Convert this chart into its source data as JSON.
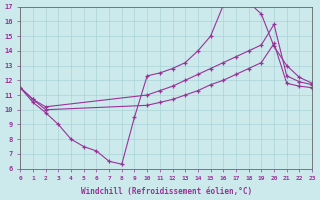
{
  "xlabel": "Windchill (Refroidissement éolien,°C)",
  "xlim": [
    0,
    23
  ],
  "ylim": [
    6,
    17
  ],
  "xticks": [
    0,
    1,
    2,
    3,
    4,
    5,
    6,
    7,
    8,
    9,
    10,
    11,
    12,
    13,
    14,
    15,
    16,
    17,
    18,
    19,
    20,
    21,
    22,
    23
  ],
  "yticks": [
    6,
    7,
    8,
    9,
    10,
    11,
    12,
    13,
    14,
    15,
    16,
    17
  ],
  "background_color": "#cce9ec",
  "grid_color": "#aad4d8",
  "line_color": "#993399",
  "curve1_x": [
    0,
    1,
    2,
    3,
    4,
    5,
    6,
    7,
    8,
    9,
    10,
    11,
    12,
    13,
    14,
    15,
    16,
    17,
    18,
    19,
    20,
    21,
    22,
    23
  ],
  "curve1_y": [
    11.5,
    10.5,
    9.8,
    9.0,
    8.0,
    7.5,
    7.2,
    6.5,
    6.3,
    9.5,
    12.3,
    12.5,
    12.8,
    13.2,
    14.0,
    15.0,
    17.1,
    17.2,
    17.3,
    16.5,
    14.3,
    13.0,
    12.2,
    11.8
  ],
  "curve2_x": [
    0,
    1,
    2,
    10,
    11,
    12,
    13,
    14,
    15,
    16,
    17,
    18,
    19,
    20,
    21,
    22,
    23
  ],
  "curve2_y": [
    11.5,
    10.7,
    10.2,
    11.0,
    11.3,
    11.6,
    12.0,
    12.4,
    12.8,
    13.2,
    13.6,
    14.0,
    14.4,
    15.8,
    12.3,
    11.9,
    11.7
  ],
  "curve3_x": [
    0,
    1,
    2,
    10,
    11,
    12,
    13,
    14,
    15,
    16,
    17,
    18,
    19,
    20,
    21,
    22,
    23
  ],
  "curve3_y": [
    11.5,
    10.7,
    10.0,
    10.3,
    10.5,
    10.7,
    11.0,
    11.3,
    11.7,
    12.0,
    12.4,
    12.8,
    13.2,
    14.5,
    11.8,
    11.6,
    11.5
  ]
}
